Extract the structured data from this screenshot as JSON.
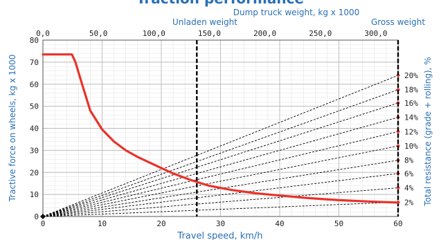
{
  "colors": {
    "accent": "#2a6fb5",
    "curve": "#e8332b",
    "grid": "#c8c8c8",
    "axis_text": "#222222",
    "lines": "#000000"
  },
  "chart_data": {
    "type": "line",
    "title": "Traction performance",
    "xlabel": "Travel speed, km/h",
    "ylabel": "Tractive force on wheels, kg x 1000",
    "ylabel_right": "Total resistance (grade + rolling), %",
    "top_axis_label": "Dump truck weight, kg x 1000",
    "xlim": [
      0,
      60
    ],
    "ylim": [
      0,
      80
    ],
    "x_ticks": [
      "0",
      "10",
      "20",
      "30",
      "40",
      "50",
      "60"
    ],
    "y_ticks": [
      "0",
      "10",
      "20",
      "30",
      "40",
      "50",
      "60",
      "70",
      "80"
    ],
    "top_axis": {
      "lim": [
        0,
        320
      ],
      "ticks": [
        {
          "value": 0,
          "label": "0,0"
        },
        {
          "value": 50,
          "label": "50,0"
        },
        {
          "value": 100,
          "label": "100,0"
        },
        {
          "value": 150,
          "label": "150,0"
        },
        {
          "value": 200,
          "label": "200,0"
        },
        {
          "value": 250,
          "label": "250,0"
        },
        {
          "value": 300,
          "label": "300,0"
        }
      ]
    },
    "grid": true,
    "reference_lines": [
      {
        "name": "Unladen weight",
        "x": 26
      },
      {
        "name": "Gross weight",
        "x": 60
      }
    ],
    "series": [
      {
        "name": "",
        "x": [
          0,
          2,
          4.9,
          5.5,
          6.5,
          8,
          10,
          12,
          14,
          16,
          18,
          20,
          22,
          25,
          28,
          32,
          36,
          40,
          45,
          50,
          55,
          60
        ],
        "y": [
          73.5,
          73.5,
          73.5,
          70,
          61,
          48,
          39.5,
          34,
          30,
          27,
          24.5,
          22,
          19.5,
          16.5,
          14,
          12,
          10.5,
          9.5,
          8.3,
          7.4,
          6.8,
          6.3
        ]
      }
    ],
    "resistance_lines": [
      {
        "label": "2%",
        "end_y": 6.5
      },
      {
        "label": "4%",
        "end_y": 13
      },
      {
        "label": "6%",
        "end_y": 19.5
      },
      {
        "label": "8%",
        "end_y": 25.5
      },
      {
        "label": "10%",
        "end_y": 32
      },
      {
        "label": "12%",
        "end_y": 38.5
      },
      {
        "label": "14%",
        "end_y": 45
      },
      {
        "label": "16%",
        "end_y": 51.5
      },
      {
        "label": "18%",
        "end_y": 57.5
      },
      {
        "label": "20%",
        "end_y": 64
      }
    ]
  }
}
